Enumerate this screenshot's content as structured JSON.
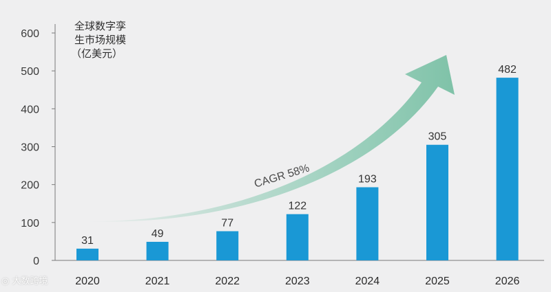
{
  "chart_data": {
    "type": "bar",
    "categories": [
      "2020",
      "2021",
      "2022",
      "2023",
      "2024",
      "2025",
      "2026"
    ],
    "values": [
      31,
      49,
      77,
      122,
      193,
      305,
      482
    ],
    "data_labels": [
      "31",
      "49",
      "77",
      "122",
      "193",
      "305",
      "482"
    ],
    "ylabel_lines": [
      "全球数字孪",
      "生市场规模",
      "（亿美元）"
    ],
    "yticks": [
      0,
      100,
      200,
      300,
      400,
      500,
      600
    ],
    "ylim": [
      0,
      600
    ],
    "annotation": "CAGR 58%",
    "grid": false,
    "colors": {
      "bar": "#1a98d5",
      "arrow": "#8fcbb5",
      "background": "#efeff0"
    }
  },
  "watermark": "大数跨境",
  "watermark_icon": "eye-logo-icon"
}
